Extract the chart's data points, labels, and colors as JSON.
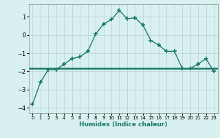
{
  "x": [
    0,
    1,
    2,
    3,
    4,
    5,
    6,
    7,
    8,
    9,
    10,
    11,
    12,
    13,
    14,
    15,
    16,
    17,
    18,
    19,
    20,
    21,
    22,
    23
  ],
  "y": [
    -3.8,
    -2.6,
    -1.9,
    -1.9,
    -1.6,
    -1.3,
    -1.2,
    -0.9,
    0.05,
    0.6,
    0.85,
    1.35,
    0.9,
    0.95,
    0.55,
    -0.3,
    -0.55,
    -0.9,
    -0.9,
    -1.85,
    -1.85,
    -1.6,
    -1.3,
    -2.0
  ],
  "xlabel": "Humidex (Indice chaleur)",
  "line_color": "#1a7a6a",
  "bg_color": "#d8f0f0",
  "grid_color": "#c0d8d8",
  "ylim": [
    -4.3,
    1.7
  ],
  "xlim": [
    -0.5,
    23.5
  ],
  "yticks": [
    -4,
    -3,
    -2,
    -1,
    0,
    1
  ],
  "xticks": [
    0,
    1,
    2,
    3,
    4,
    5,
    6,
    7,
    8,
    9,
    10,
    11,
    12,
    13,
    14,
    15,
    16,
    17,
    18,
    19,
    20,
    21,
    22,
    23
  ],
  "flat_y": -1.85
}
